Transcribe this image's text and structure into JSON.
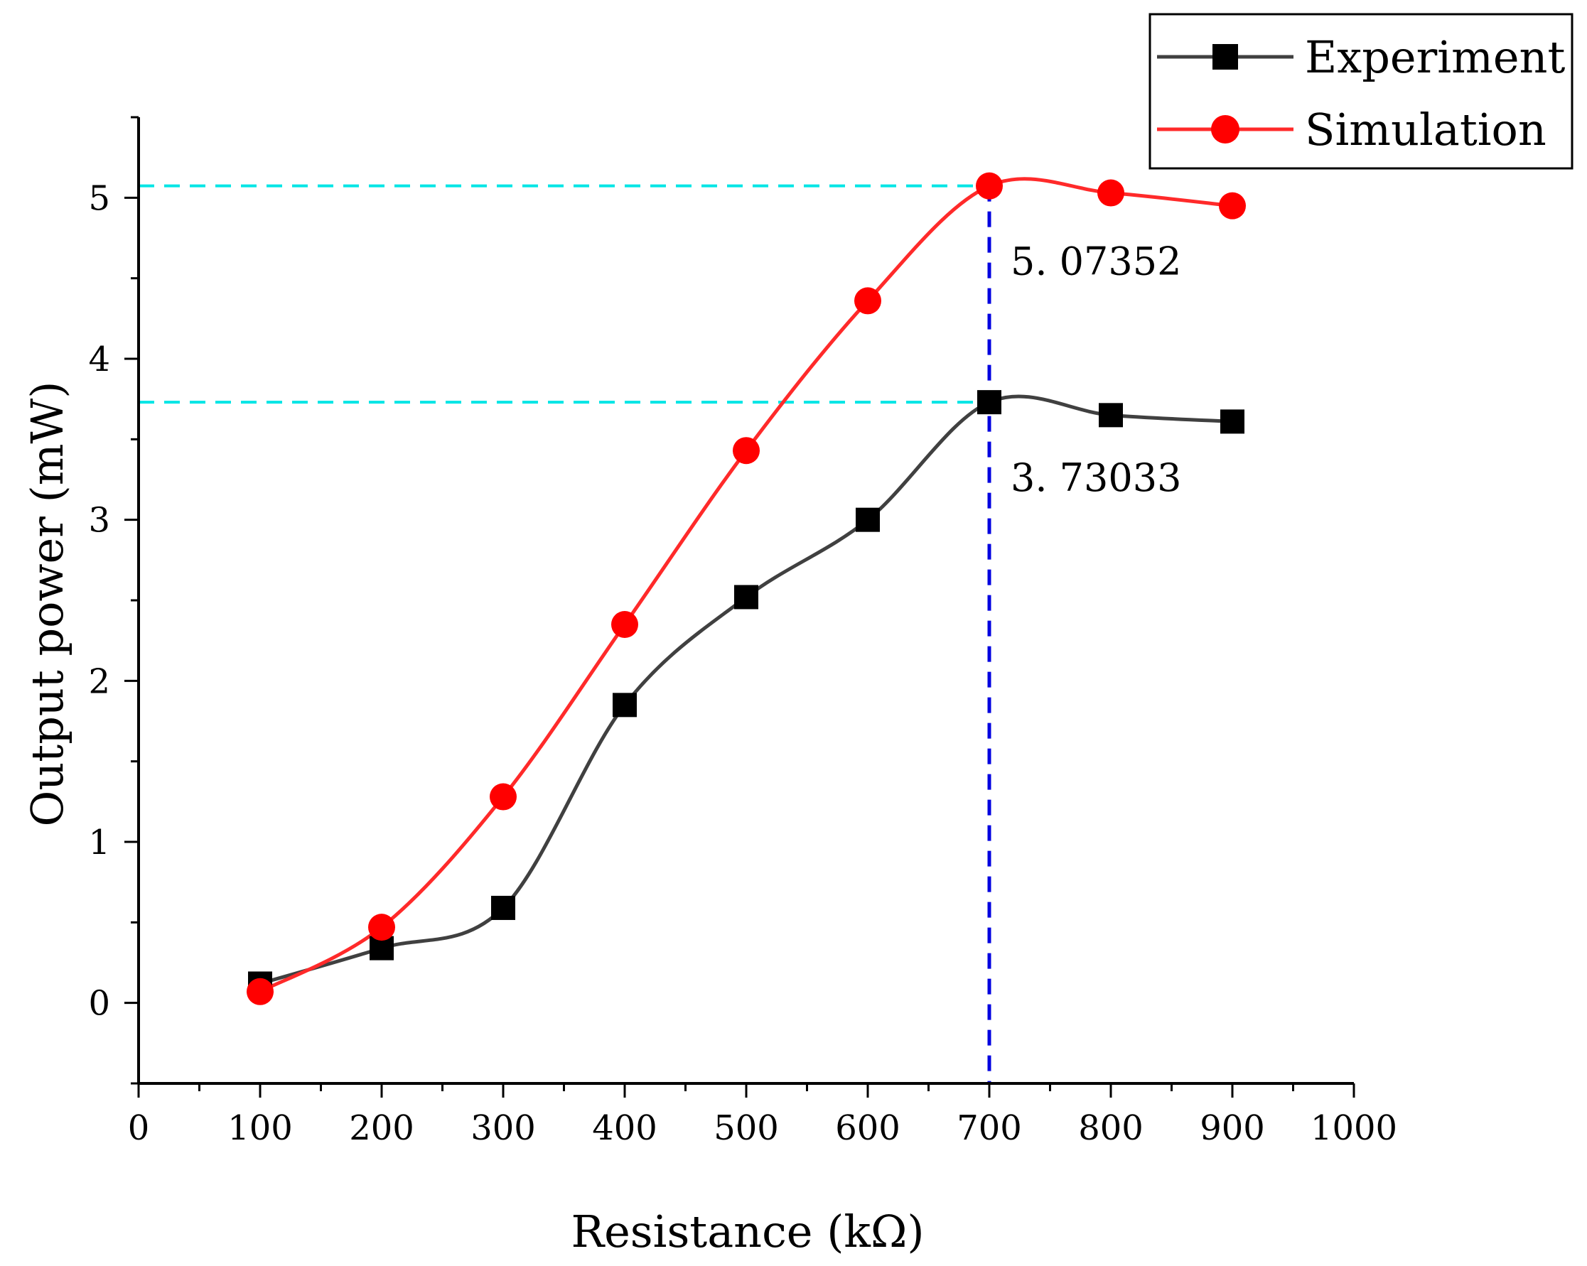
{
  "chart_data": {
    "type": "line",
    "title": "",
    "xlabel": "Resistance (kΩ)",
    "ylabel": "Output power (mW)",
    "xlim": [
      0,
      1000
    ],
    "ylim": [
      -0.5,
      5.5
    ],
    "xticks": [
      0,
      100,
      200,
      300,
      400,
      500,
      600,
      700,
      800,
      900,
      1000
    ],
    "xtick_labels": [
      "0",
      "100",
      "200",
      "300",
      "400",
      "500",
      "600",
      "700",
      "800",
      "900",
      "1000"
    ],
    "yticks": [
      0,
      1,
      2,
      3,
      4,
      5
    ],
    "ytick_labels": [
      "0",
      "1",
      "2",
      "3",
      "4",
      "5"
    ],
    "grid": false,
    "legend_position": "top-right",
    "x": [
      100,
      200,
      300,
      400,
      500,
      600,
      700,
      800,
      900
    ],
    "series": [
      {
        "name": "Experiment",
        "color": "#404040",
        "marker": "square",
        "marker_color": "#000000",
        "values": [
          0.12,
          0.34,
          0.59,
          1.85,
          2.52,
          3.0,
          3.73033,
          3.65,
          3.61
        ]
      },
      {
        "name": "Simulation",
        "color": "#ff2a2a",
        "marker": "circle",
        "marker_color": "#ff0000",
        "values": [
          0.07,
          0.47,
          1.28,
          2.35,
          3.43,
          4.36,
          5.07352,
          5.03,
          4.95
        ]
      }
    ],
    "reference_lines": {
      "horizontal_color": "#00e5e5",
      "vertical_color": "#0000e0",
      "peak_x": 700,
      "peak_values": [
        5.07352,
        3.73033
      ]
    },
    "annotations": [
      {
        "text": "5. 07352",
        "x": 700,
        "y": 5.07352
      },
      {
        "text": "3. 73033",
        "x": 700,
        "y": 3.73033
      }
    ]
  }
}
